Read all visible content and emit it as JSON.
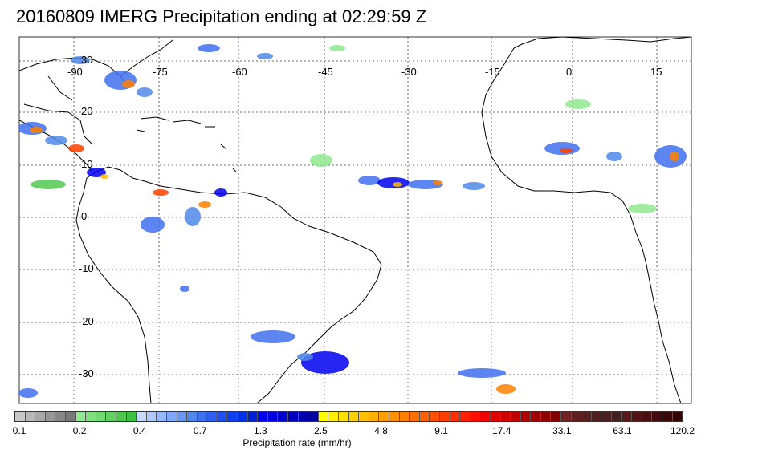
{
  "title": "20160809 IMERG Precipitation ending at 02:29:59 Z",
  "longitudes": [
    "-90",
    "-75",
    "-60",
    "-45",
    "-30",
    "-15",
    "0",
    "15"
  ],
  "latitudes": [
    "30",
    "20",
    "10",
    "0",
    "-10",
    "-20",
    "-30"
  ],
  "colorbar": {
    "title": "Precipitation rate (mm/hr)",
    "labels": [
      "0.1",
      "0.2",
      "0.4",
      "0.7",
      "1.3",
      "2.5",
      "4.8",
      "9.1",
      "17.4",
      "33.1",
      "63.1",
      "120.2"
    ],
    "colors": [
      "#c8c8c8",
      "#b8b8b8",
      "#a8a8a8",
      "#989898",
      "#888888",
      "#787878",
      "#90e890",
      "#80e080",
      "#70d870",
      "#60d060",
      "#50c850",
      "#40c040",
      "#c8d8ff",
      "#b0c8ff",
      "#98b8ff",
      "#80a8f8",
      "#6898f0",
      "#5088e8",
      "#4070f0",
      "#3060f0",
      "#2050f0",
      "#1040f0",
      "#0030e8",
      "#0020d8",
      "#0000f0",
      "#0000e0",
      "#0000d0",
      "#0000c0",
      "#0000b0",
      "#0000a0",
      "#ffff00",
      "#fff000",
      "#ffe000",
      "#ffd000",
      "#ffc000",
      "#ffb000",
      "#ffa000",
      "#ff9000",
      "#ff8000",
      "#ff7000",
      "#ff6000",
      "#ff5000",
      "#ff4000",
      "#ff3000",
      "#ff2000",
      "#ff1000",
      "#f00000",
      "#e00000",
      "#d00000",
      "#c00000",
      "#b00000",
      "#a00000",
      "#900000",
      "#800000",
      "#702020",
      "#602020",
      "#582020",
      "#502020",
      "#482020",
      "#402020",
      "#5a1818",
      "#521414",
      "#4a1010",
      "#420c0c",
      "#3a0808",
      "#320404"
    ]
  }
}
